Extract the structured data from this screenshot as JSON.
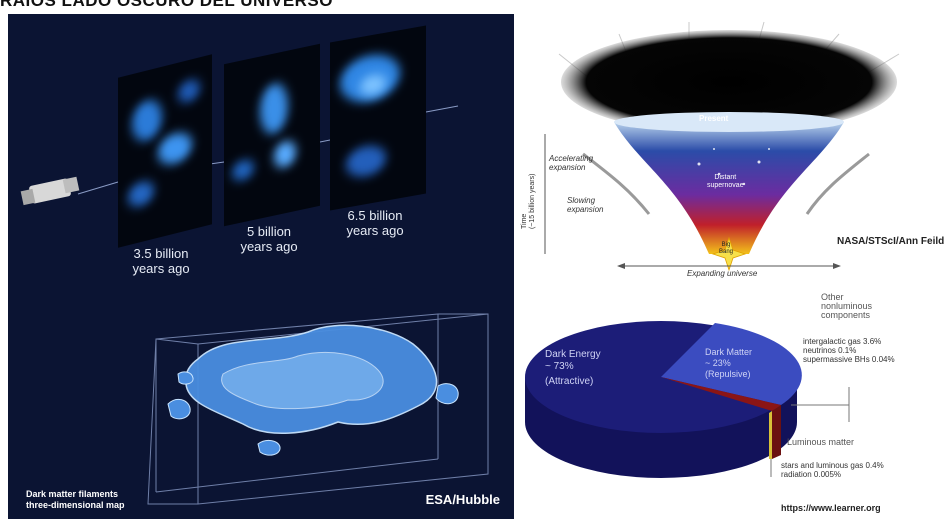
{
  "header": {
    "title": "RAIOS LADO OSCURO DEL UNIVERSO"
  },
  "left_panel": {
    "labels": [
      {
        "text_line1": "3.5 billion",
        "text_line2": "years ago"
      },
      {
        "text_line1": "5 billion",
        "text_line2": "years ago"
      },
      {
        "text_line1": "6.5 billion",
        "text_line2": "years ago"
      }
    ],
    "caption_line1": "Dark matter filaments",
    "caption_line2": "three-dimensional map",
    "credit": "ESA/Hubble"
  },
  "universe_diagram": {
    "present_label": "Present",
    "accelerating_line1": "Accelerating",
    "accelerating_line2": "expansion",
    "slowing_line1": "Slowing",
    "slowing_line2": "expansion",
    "supernovae_line1": "Distant",
    "supernovae_line2": "supernovae",
    "bigbang_line1": "Big",
    "bigbang_line2": "Bang",
    "time_line1": "Time",
    "time_line2": "(~15 billion years)",
    "expanding": "Expanding universe",
    "credit": "NASA/STScI/Ann Feild",
    "gradient_colors": [
      "#b8d2ec",
      "#2b4ca8",
      "#6b2ca0",
      "#c0202a",
      "#f3c21a"
    ]
  },
  "pie": {
    "dark_energy_label": "Dark Energy",
    "dark_energy_value": "~ 73%",
    "dark_energy_note": "(Attractive)",
    "dark_matter_label": "Dark Matter",
    "dark_matter_value": "~ 23%",
    "dark_matter_note": "(Repulsive)",
    "other_line1": "Other",
    "other_line2": "nonluminous",
    "other_line3": "components",
    "other_detail1": "intergalactic gas 3.6%",
    "other_detail2": "neutrinos 0.1%",
    "other_detail3": "supermassive BHs 0.04%",
    "luminous_label": "Luminous matter",
    "luminous_detail1": "stars and luminous gas 0.4%",
    "luminous_detail2": "radiation 0.005%",
    "url": "https://www.learner.org",
    "colors": {
      "dark_energy": "#1c1d78",
      "dark_matter": "#3b4cc0",
      "other": "#8b1515",
      "luminous": "#d8c038"
    }
  }
}
